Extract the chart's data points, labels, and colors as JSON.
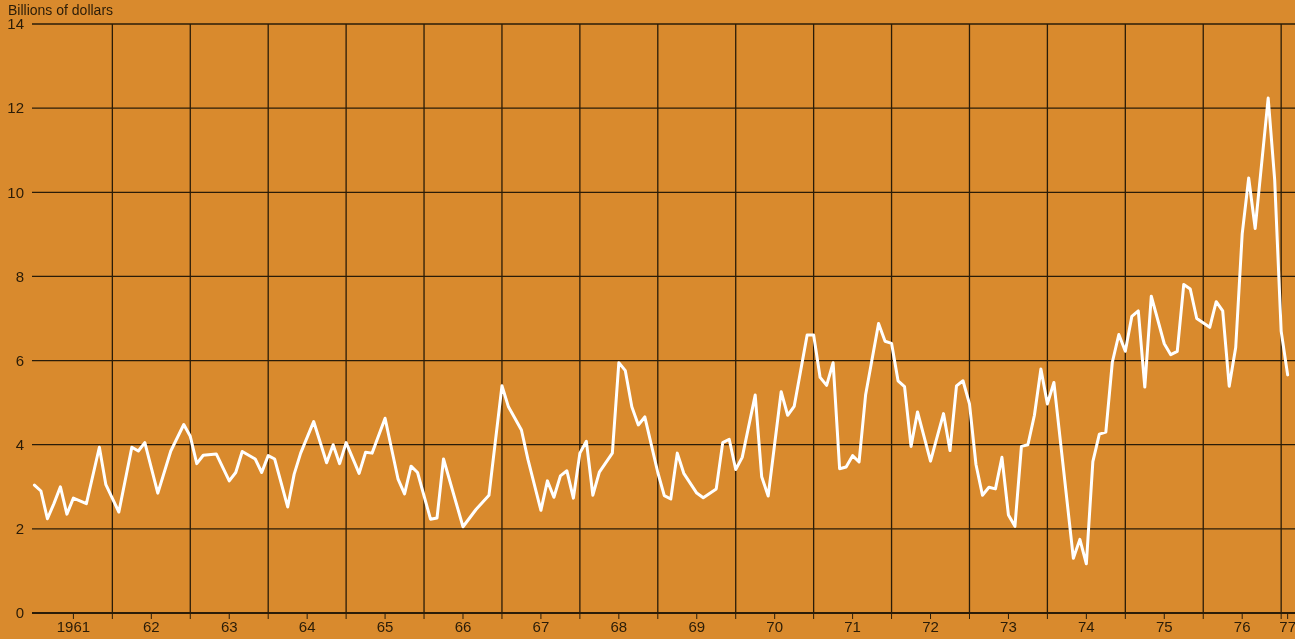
{
  "chart_data": {
    "type": "line",
    "ylabel": "Billions of dollars",
    "color": "#ffffff",
    "grid": true,
    "xlim": [
      "1960-12-20",
      "1977-03-05"
    ],
    "ylim": [
      0,
      14
    ],
    "yticks": [
      0,
      2,
      4,
      6,
      8,
      10,
      12,
      14
    ],
    "xticks": [
      {
        "value": "1961-07",
        "label": "1961"
      },
      {
        "value": "1962",
        "label": null
      },
      {
        "value": "1962-07",
        "label": "62"
      },
      {
        "value": "1963",
        "label": null
      },
      {
        "value": "1963-07",
        "label": "63"
      },
      {
        "value": "1964",
        "label": null
      },
      {
        "value": "1964-07",
        "label": "64"
      },
      {
        "value": "1965",
        "label": null
      },
      {
        "value": "1965-07",
        "label": "65"
      },
      {
        "value": "1966",
        "label": null
      },
      {
        "value": "1966-07",
        "label": "66"
      },
      {
        "value": "1967",
        "label": null
      },
      {
        "value": "1967-07",
        "label": "67"
      },
      {
        "value": "1968",
        "label": null
      },
      {
        "value": "1968-07",
        "label": "68"
      },
      {
        "value": "1969",
        "label": null
      },
      {
        "value": "1969-07",
        "label": "69"
      },
      {
        "value": "1970",
        "label": null
      },
      {
        "value": "1970-07",
        "label": "70"
      },
      {
        "value": "1971",
        "label": null
      },
      {
        "value": "1971-07",
        "label": "71"
      },
      {
        "value": "1972",
        "label": null
      },
      {
        "value": "1972-07",
        "label": "72"
      },
      {
        "value": "1973",
        "label": null
      },
      {
        "value": "1973-07",
        "label": "73"
      },
      {
        "value": "1974",
        "label": null
      },
      {
        "value": "1974-07",
        "label": "74"
      },
      {
        "value": "1975",
        "label": null
      },
      {
        "value": "1975-07",
        "label": "75"
      },
      {
        "value": "1976",
        "label": null
      },
      {
        "value": "1976-07",
        "label": "76"
      },
      {
        "value": "1977",
        "label": null
      },
      {
        "value": "1977-02",
        "label": "77"
      }
    ],
    "x": [
      "1961-01",
      "1961-02",
      "1961-03",
      "1961-04",
      "1961-05",
      "1961-06",
      "1961-07",
      "1961-09",
      "1961-11",
      "1961-12",
      "1962-02",
      "1962-04",
      "1962-05",
      "1962-06",
      "1962-08",
      "1962-10",
      "1962-12",
      "1963-01",
      "1963-02",
      "1963-03",
      "1963-05",
      "1963-07",
      "1963-08",
      "1963-09",
      "1963-11",
      "1963-12",
      "1964-01",
      "1964-02",
      "1964-04",
      "1964-05",
      "1964-06",
      "1964-08",
      "1964-10",
      "1964-11",
      "1964-12",
      "1965-01",
      "1965-03",
      "1965-04",
      "1965-05",
      "1965-07",
      "1965-09",
      "1965-10",
      "1965-11",
      "1965-12",
      "1966-02",
      "1966-03",
      "1966-04",
      "1966-07",
      "1966-09",
      "1966-11",
      "1967-01",
      "1967-02",
      "1967-04",
      "1967-05",
      "1967-07",
      "1967-08",
      "1967-09",
      "1967-10",
      "1967-11",
      "1967-12",
      "1968-01",
      "1968-02",
      "1968-03",
      "1968-04",
      "1968-06",
      "1968-07",
      "1968-08",
      "1968-09",
      "1968-10",
      "1968-11",
      "1969-01",
      "1969-02",
      "1969-03",
      "1969-04",
      "1969-05",
      "1969-07",
      "1969-08",
      "1969-10",
      "1969-11",
      "1969-12",
      "1970-01",
      "1970-02",
      "1970-04",
      "1970-05",
      "1970-06",
      "1970-08",
      "1970-09",
      "1970-10",
      "1970-12",
      "1971-01",
      "1971-02",
      "1971-03",
      "1971-04",
      "1971-05",
      "1971-06",
      "1971-07",
      "1971-08",
      "1971-09",
      "1971-11",
      "1971-12",
      "1972-01",
      "1972-02",
      "1972-03",
      "1972-04",
      "1972-05",
      "1972-07",
      "1972-09",
      "1972-10",
      "1972-11",
      "1972-12",
      "1973-01",
      "1973-02",
      "1973-03",
      "1973-04",
      "1973-05",
      "1973-06",
      "1973-07",
      "1973-08",
      "1973-09",
      "1973-10",
      "1973-11",
      "1973-12",
      "1974-01",
      "1974-02",
      "1974-05",
      "1974-06",
      "1974-07",
      "1974-08",
      "1974-09",
      "1974-10",
      "1974-11",
      "1974-12",
      "1975-01",
      "1975-02",
      "1975-03",
      "1975-04",
      "1975-05",
      "1975-07",
      "1975-08",
      "1975-09",
      "1975-10",
      "1975-11",
      "1975-12",
      "1976-02",
      "1976-03",
      "1976-04",
      "1976-05",
      "1976-06",
      "1976-07",
      "1976-08",
      "1976-09",
      "1976-11",
      "1976-12",
      "1977-01",
      "1977-02"
    ],
    "values": [
      3.04,
      2.9,
      2.24,
      2.6,
      3.0,
      2.35,
      2.73,
      2.6,
      3.94,
      3.05,
      2.4,
      3.94,
      3.85,
      4.05,
      2.85,
      3.85,
      4.48,
      4.2,
      3.55,
      3.75,
      3.78,
      3.14,
      3.34,
      3.84,
      3.66,
      3.34,
      3.74,
      3.66,
      2.52,
      3.3,
      3.8,
      4.55,
      3.57,
      4.0,
      3.55,
      4.05,
      3.32,
      3.82,
      3.8,
      4.63,
      3.18,
      2.83,
      3.49,
      3.34,
      2.23,
      2.26,
      3.66,
      2.05,
      2.46,
      2.8,
      5.4,
      4.9,
      4.35,
      3.65,
      2.44,
      3.14,
      2.75,
      3.26,
      3.38,
      2.73,
      3.8,
      4.08,
      2.8,
      3.35,
      3.8,
      5.95,
      5.76,
      4.9,
      4.47,
      4.66,
      3.34,
      2.79,
      2.71,
      3.8,
      3.32,
      2.85,
      2.74,
      2.95,
      4.05,
      4.13,
      3.41,
      3.7,
      5.18,
      3.24,
      2.78,
      5.26,
      4.7,
      4.91,
      6.61,
      6.61,
      5.6,
      5.41,
      5.95,
      3.43,
      3.47,
      3.74,
      3.59,
      5.18,
      6.88,
      6.46,
      6.41,
      5.52,
      5.38,
      3.96,
      4.78,
      3.61,
      4.74,
      3.86,
      5.4,
      5.52,
      4.97,
      3.53,
      2.8,
      2.99,
      2.95,
      3.7,
      2.33,
      2.06,
      3.96,
      4.0,
      4.7,
      5.8,
      4.97,
      5.48,
      1.3,
      1.75,
      1.17,
      3.6,
      4.25,
      4.3,
      5.96,
      6.62,
      6.22,
      7.05,
      7.18,
      5.37,
      7.53,
      6.4,
      6.14,
      6.22,
      7.81,
      7.7,
      7.0,
      6.79,
      7.4,
      7.18,
      5.39,
      6.31,
      9.01,
      10.34,
      9.14,
      12.24,
      10.3,
      6.7,
      5.66
    ]
  }
}
